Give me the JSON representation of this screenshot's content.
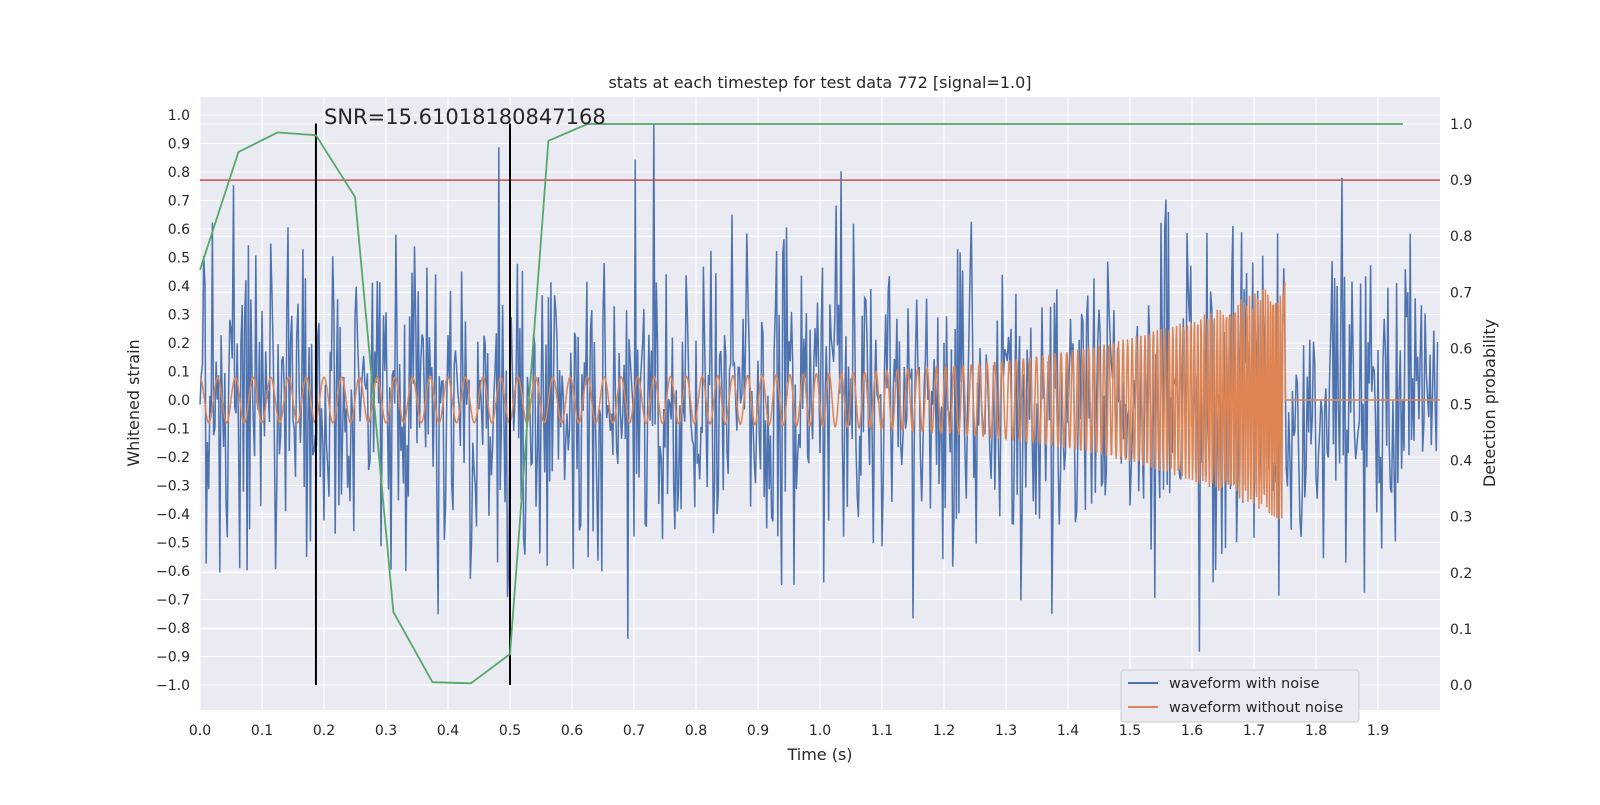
{
  "chart_data": {
    "type": "line",
    "title": "stats at each timestep for test data 772 [signal=1.0]",
    "xlabel": "Time (s)",
    "ylabel": "Whitened strain",
    "y2label": "Detection probability",
    "xlim": [
      0.0,
      2.0
    ],
    "ylim": [
      -1.1,
      1.05
    ],
    "y2lim": [
      -0.05,
      1.05
    ],
    "x_ticks": [
      "0.0",
      "0.1",
      "0.2",
      "0.3",
      "0.4",
      "0.5",
      "0.6",
      "0.7",
      "0.8",
      "0.9",
      "1.0",
      "1.1",
      "1.2",
      "1.3",
      "1.4",
      "1.5",
      "1.6",
      "1.7",
      "1.8",
      "1.9"
    ],
    "y_ticks": [
      "1.0",
      "0.9",
      "0.8",
      "0.7",
      "0.6",
      "0.5",
      "0.4",
      "0.3",
      "0.2",
      "0.1",
      "0.0",
      "−0.1",
      "−0.2",
      "−0.3",
      "−0.4",
      "−0.5",
      "−0.6",
      "−0.7",
      "−0.8",
      "−0.9",
      "−1.0"
    ],
    "y2_ticks": [
      "1.0",
      "0.9",
      "0.8",
      "0.7",
      "0.6",
      "0.5",
      "0.4",
      "0.3",
      "0.2",
      "0.1",
      "0.0"
    ],
    "grid": true,
    "legend_position": "lower-right",
    "annotation": "SNR=15.610181808471 68",
    "annotation_text": "SNR=15.61018180847168",
    "series": [
      {
        "name": "waveform with noise",
        "axis": "left",
        "color": "#4c72b0",
        "description_stats": {
          "min": -1.0,
          "max": 0.97,
          "approx_std": 0.27
        },
        "x_range": [
          0.0,
          1.998
        ],
        "sample_step": 0.002
      },
      {
        "name": "waveform without noise",
        "axis": "left",
        "color": "#dd8452",
        "x_range": [
          0.0,
          2.0
        ],
        "merger_time": 1.75,
        "amplitude_start": 0.08,
        "amplitude_peak": 0.43,
        "freq_start_hz": 35,
        "freq_end_hz": 260
      },
      {
        "name": "",
        "axis": "right",
        "color": "#55a868",
        "x": [
          0.0,
          0.062,
          0.125,
          0.187,
          0.25,
          0.312,
          0.375,
          0.437,
          0.5,
          0.562,
          0.625,
          0.687,
          0.75,
          0.812,
          0.875,
          0.937,
          1.0,
          1.062,
          1.125,
          1.187,
          1.25,
          1.312,
          1.375,
          1.437,
          1.5,
          1.562,
          1.625,
          1.687,
          1.75,
          1.812,
          1.875,
          1.94
        ],
        "y": [
          0.74,
          0.95,
          0.985,
          0.98,
          0.87,
          0.13,
          0.005,
          0.003,
          0.055,
          0.97,
          1.0,
          1.0,
          1.0,
          1.0,
          1.0,
          1.0,
          1.0,
          1.0,
          1.0,
          1.0,
          1.0,
          1.0,
          1.0,
          1.0,
          1.0,
          1.0,
          1.0,
          1.0,
          1.0,
          1.0,
          1.0,
          1.0
        ]
      }
    ],
    "hlines": [
      {
        "axis": "right",
        "y": 0.9,
        "color": "#c44e52"
      }
    ],
    "vlines": [
      {
        "x": 0.187,
        "ymin": -1.0,
        "ymax": 0.97,
        "color": "#000000"
      },
      {
        "x": 0.5,
        "ymin": -1.0,
        "ymax": 0.97,
        "color": "#000000"
      }
    ],
    "colors": {
      "background": "#eaeaf2",
      "grid": "#ffffff",
      "text": "#262626"
    }
  }
}
